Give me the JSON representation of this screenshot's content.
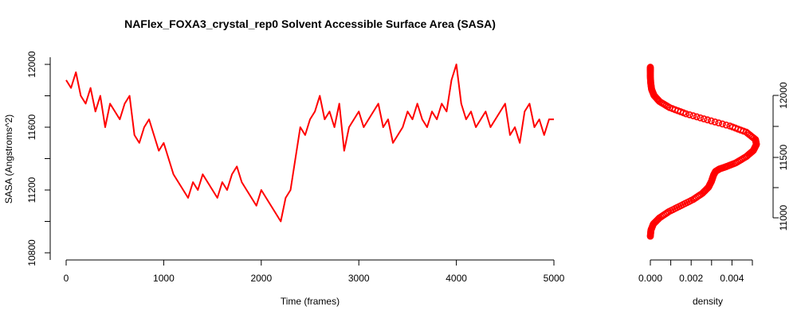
{
  "chart_data": [
    {
      "type": "line",
      "title": "NAFlex_FOXA3_crystal_rep0 Solvent Accessible Surface Area (SASA)",
      "xlabel": "Time (frames)",
      "ylabel": "SASA (Angstroms^2)",
      "xlim": [
        0,
        5000
      ],
      "ylim": [
        10800,
        12200
      ],
      "xticks": [
        0,
        1000,
        2000,
        3000,
        4000,
        5000
      ],
      "yticks": [
        10800,
        11200,
        11600,
        12000
      ],
      "color": "#ff0000",
      "grid": false,
      "series": [
        {
          "x": [
            0,
            50,
            100,
            150,
            200,
            250,
            300,
            350,
            400,
            450,
            500,
            550,
            600,
            650,
            700,
            750,
            800,
            850,
            900,
            950,
            1000,
            1050,
            1100,
            1150,
            1200,
            1250,
            1300,
            1350,
            1400,
            1450,
            1500,
            1550,
            1600,
            1650,
            1700,
            1750,
            1800,
            1850,
            1900,
            1950,
            2000,
            2050,
            2100,
            2150,
            2200,
            2250,
            2300,
            2350,
            2400,
            2450,
            2500,
            2550,
            2600,
            2650,
            2700,
            2750,
            2800,
            2850,
            2900,
            2950,
            3000,
            3050,
            3100,
            3150,
            3200,
            3250,
            3300,
            3350,
            3400,
            3450,
            3500,
            3550,
            3600,
            3650,
            3700,
            3750,
            3800,
            3850,
            3900,
            3950,
            4000,
            4050,
            4100,
            4150,
            4200,
            4250,
            4300,
            4350,
            4400,
            4450,
            4500,
            4550,
            4600,
            4650,
            4700,
            4750,
            4800,
            4850,
            4900,
            4950,
            5000
          ],
          "y": [
            11900,
            11850,
            11950,
            11800,
            11750,
            11850,
            11700,
            11800,
            11600,
            11750,
            11700,
            11650,
            11750,
            11800,
            11550,
            11500,
            11600,
            11650,
            11550,
            11450,
            11500,
            11400,
            11300,
            11250,
            11200,
            11150,
            11250,
            11200,
            11300,
            11250,
            11200,
            11150,
            11250,
            11200,
            11300,
            11350,
            11250,
            11200,
            11150,
            11100,
            11200,
            11150,
            11100,
            11050,
            11000,
            11150,
            11200,
            11400,
            11600,
            11550,
            11650,
            11700,
            11800,
            11650,
            11700,
            11600,
            11750,
            11450,
            11600,
            11650,
            11700,
            11600,
            11650,
            11700,
            11750,
            11600,
            11650,
            11500,
            11550,
            11600,
            11700,
            11650,
            11750,
            11650,
            11600,
            11700,
            11650,
            11750,
            11700,
            11900,
            12000,
            11750,
            11650,
            11700,
            11600,
            11650,
            11700,
            11600,
            11650,
            11700,
            11750,
            11550,
            11600,
            11500,
            11700,
            11750,
            11600,
            11650,
            11550,
            11650,
            11650
          ]
        }
      ]
    },
    {
      "type": "scatter",
      "xlabel": "density",
      "ylabel": "",
      "xlim": [
        0,
        0.0051
      ],
      "ylim": [
        10800,
        12200
      ],
      "xticks": [
        "0.000",
        "0.002",
        "0.004"
      ],
      "yticks": [
        "11000",
        "11500",
        "12000"
      ],
      "color": "#ff0000",
      "grid": false,
      "series": [
        {
          "y": [
            10850,
            10900,
            10950,
            11000,
            11050,
            11100,
            11150,
            11200,
            11250,
            11300,
            11350,
            11380,
            11400,
            11420,
            11450,
            11500,
            11550,
            11600,
            11640,
            11700,
            11750,
            11800,
            11850,
            11900,
            11950,
            12000,
            12050,
            12100,
            12150,
            12200,
            12230
          ],
          "density": [
            0.0,
            3e-05,
            0.00015,
            0.00045,
            0.0009,
            0.0015,
            0.0021,
            0.00255,
            0.00285,
            0.003,
            0.0031,
            0.0032,
            0.0034,
            0.00375,
            0.0042,
            0.0047,
            0.00505,
            0.0052,
            0.00515,
            0.0047,
            0.0039,
            0.0028,
            0.00175,
            0.00095,
            0.00045,
            0.00018,
            6e-05,
            2e-05,
            0.0,
            0.0,
            0.0
          ]
        }
      ]
    }
  ]
}
